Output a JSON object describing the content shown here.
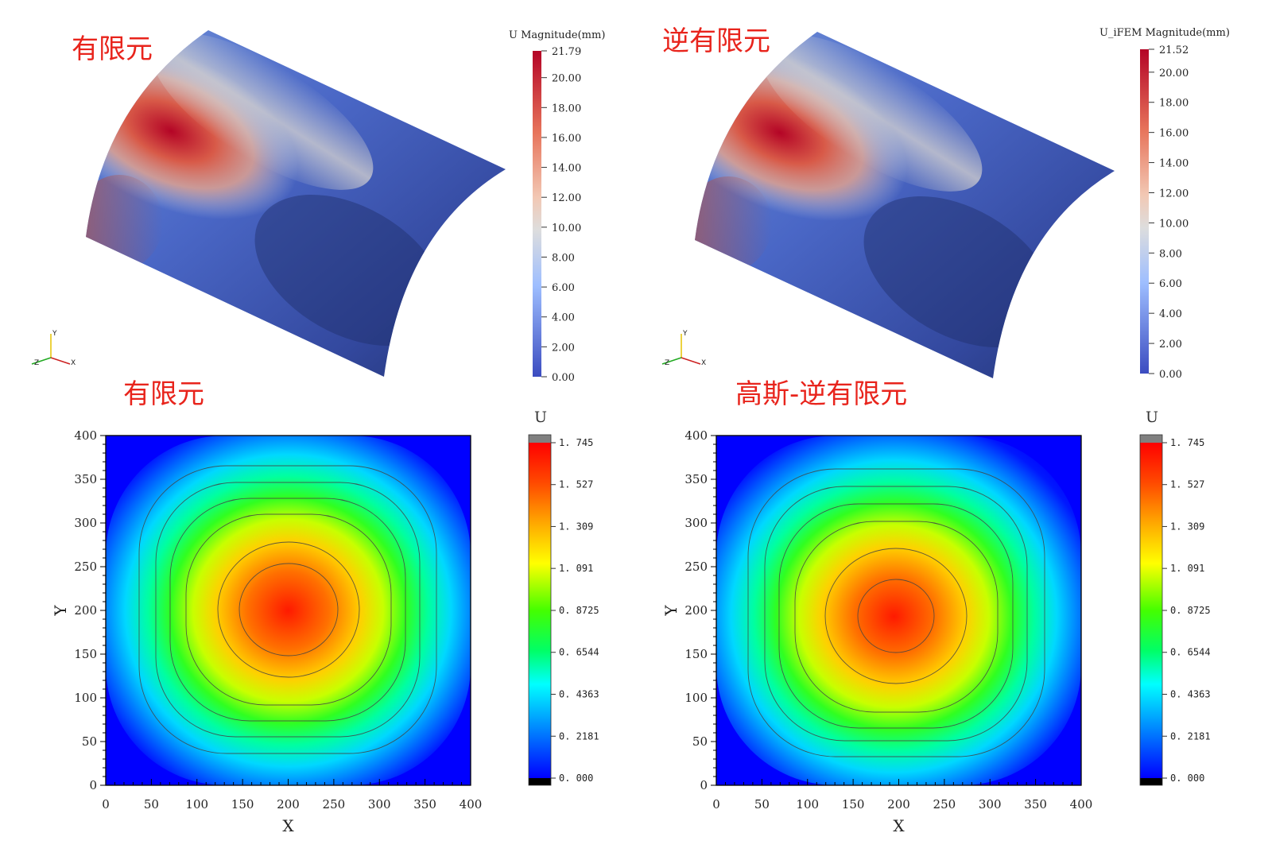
{
  "panels": {
    "top_left_title": "有限元",
    "top_right_title": "逆有限元",
    "bottom_left_title": "有限元",
    "bottom_right_title": "高斯-逆有限元"
  },
  "triad": {
    "x": "X",
    "y": "Y",
    "z": "Z"
  },
  "colors": {
    "title_red": "#e8241c",
    "coolwarm_low": "#3b4cc0",
    "coolwarm_mid": "#dddddd",
    "coolwarm_high": "#b40426",
    "jet_low": "#0000ff",
    "jet_high": "#ff0000"
  },
  "chart_data": [
    {
      "type": "heatmap",
      "surface": "curved shell 3D view",
      "colorbar_title": "U Magnitude(mm)",
      "colormap": "coolwarm",
      "range": [
        0.0,
        21.79
      ],
      "colorbar_ticks": [
        "21.79",
        "20.00",
        "18.00",
        "16.00",
        "14.00",
        "12.00",
        "10.00",
        "8.00",
        "6.00",
        "4.00",
        "2.00",
        "0.00"
      ],
      "tick_values": [
        21.79,
        20,
        18,
        16,
        14,
        12,
        10,
        8,
        6,
        4,
        2,
        0
      ]
    },
    {
      "type": "heatmap",
      "surface": "curved shell 3D view",
      "colorbar_title": "U_iFEM Magnitude(mm)",
      "colormap": "coolwarm",
      "range": [
        0.0,
        21.52
      ],
      "colorbar_ticks": [
        "21.52",
        "20.00",
        "18.00",
        "16.00",
        "14.00",
        "12.00",
        "10.00",
        "8.00",
        "6.00",
        "4.00",
        "2.00",
        "0.00"
      ],
      "tick_values": [
        21.52,
        20,
        18,
        16,
        14,
        12,
        10,
        8,
        6,
        4,
        2,
        0
      ]
    },
    {
      "type": "heatmap",
      "xlabel": "X",
      "ylabel": "Y",
      "xlim": [
        0,
        400
      ],
      "ylim": [
        0,
        400
      ],
      "x_ticks": [
        "0",
        "50",
        "100",
        "150",
        "200",
        "250",
        "300",
        "350",
        "400"
      ],
      "y_ticks": [
        "0",
        "50",
        "100",
        "150",
        "200",
        "250",
        "300",
        "350",
        "400"
      ],
      "peak_location": [
        200,
        200
      ],
      "colorbar_title": "U",
      "colormap": "jet",
      "range": [
        0.0,
        1.745
      ],
      "colorbar_ticks": [
        "1. 745",
        "1. 527",
        "1. 309",
        "1. 091",
        "0. 8725",
        "0. 6544",
        "0. 4363",
        "0. 2181",
        "0. 000"
      ],
      "tick_values": [
        1.745,
        1.527,
        1.309,
        1.091,
        0.8725,
        0.6544,
        0.4363,
        0.2181,
        0.0
      ]
    },
    {
      "type": "heatmap",
      "xlabel": "X",
      "ylabel": "Y",
      "xlim": [
        0,
        400
      ],
      "ylim": [
        0,
        400
      ],
      "x_ticks": [
        "0",
        "50",
        "100",
        "150",
        "200",
        "250",
        "300",
        "350",
        "400"
      ],
      "y_ticks": [
        "0",
        "50",
        "100",
        "150",
        "200",
        "250",
        "300",
        "350",
        "400"
      ],
      "peak_location": [
        195,
        193
      ],
      "colorbar_title": "U",
      "colormap": "jet",
      "range": [
        0.0,
        1.745
      ],
      "colorbar_ticks": [
        "1. 745",
        "1. 527",
        "1. 309",
        "1. 091",
        "0. 8725",
        "0. 6544",
        "0. 4363",
        "0. 2181",
        "0. 000"
      ],
      "tick_values": [
        1.745,
        1.527,
        1.309,
        1.091,
        0.8725,
        0.6544,
        0.4363,
        0.2181,
        0.0
      ]
    }
  ]
}
